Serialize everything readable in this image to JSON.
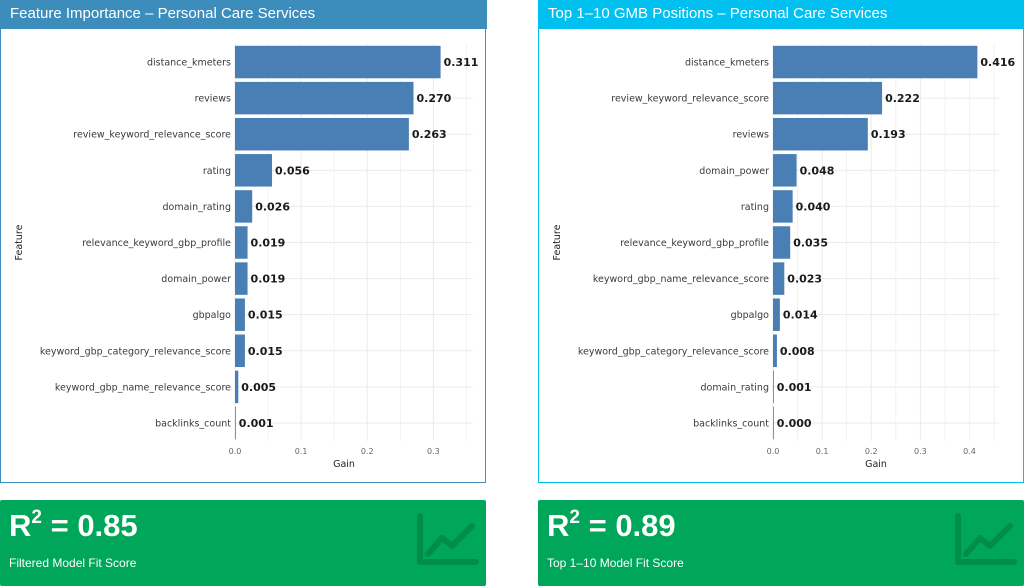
{
  "panels": [
    {
      "title": "Feature Importance – Personal Care Services",
      "fit": {
        "value": "0.85",
        "label": "Filtered Model Fit Score",
        "icon": "line-chart-icon"
      }
    },
    {
      "title": "Top 1–10 GMB Positions – Personal Care Services",
      "fit": {
        "value": "0.89",
        "label": "Top 1–10 Model Fit Score",
        "icon": "line-chart-icon"
      }
    }
  ],
  "colors": {
    "bar": "#4a7fb5",
    "header_left": "#3c8dbc",
    "header_right": "#00c0ef",
    "value_box": "#00a65a"
  },
  "chart_data": [
    {
      "type": "bar",
      "orientation": "horizontal",
      "xlabel": "Gain",
      "ylabel": "Feature",
      "xlim": [
        0,
        0.36
      ],
      "xticks": [
        "0.0",
        "0.1",
        "0.2",
        "0.3"
      ],
      "grid": true,
      "categories": [
        "distance_kmeters",
        "reviews",
        "review_keyword_relevance_score",
        "rating",
        "domain_rating",
        "relevance_keyword_gbp_profile",
        "domain_power",
        "gbpalgo",
        "keyword_gbp_category_relevance_score",
        "keyword_gbp_name_relevance_score",
        "backlinks_count"
      ],
      "values": [
        0.311,
        0.27,
        0.263,
        0.056,
        0.026,
        0.019,
        0.019,
        0.015,
        0.015,
        0.005,
        0.001
      ],
      "labels": [
        "0.311",
        "0.270",
        "0.263",
        "0.056",
        "0.026",
        "0.019",
        "0.019",
        "0.015",
        "0.015",
        "0.005",
        "0.001"
      ]
    },
    {
      "type": "bar",
      "orientation": "horizontal",
      "xlabel": "Gain",
      "ylabel": "Feature",
      "xlim": [
        0,
        0.46
      ],
      "xticks": [
        "0.0",
        "0.1",
        "0.2",
        "0.3",
        "0.4"
      ],
      "grid": true,
      "categories": [
        "distance_kmeters",
        "review_keyword_relevance_score",
        "reviews",
        "domain_power",
        "rating",
        "relevance_keyword_gbp_profile",
        "keyword_gbp_name_relevance_score",
        "gbpalgo",
        "keyword_gbp_category_relevance_score",
        "domain_rating",
        "backlinks_count"
      ],
      "values": [
        0.416,
        0.222,
        0.193,
        0.048,
        0.04,
        0.035,
        0.023,
        0.014,
        0.008,
        0.001,
        0.0
      ],
      "labels": [
        "0.416",
        "0.222",
        "0.193",
        "0.048",
        "0.040",
        "0.035",
        "0.023",
        "0.014",
        "0.008",
        "0.001",
        "0.000"
      ]
    }
  ]
}
